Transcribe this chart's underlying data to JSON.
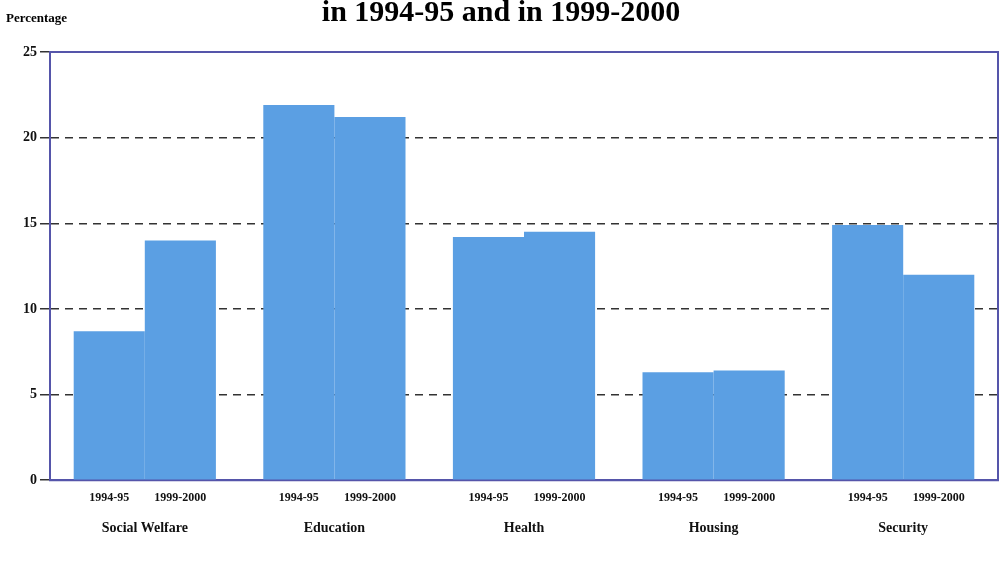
{
  "chart_data": {
    "type": "bar",
    "title": "in 1994-95 and in 1999-2000",
    "ylabel": "Percentage",
    "categories": [
      "Social Welfare",
      "Education",
      "Health",
      "Housing",
      "Security"
    ],
    "series": [
      {
        "name": "1994-95",
        "color": "#5b9fe3",
        "values": [
          8.7,
          21.9,
          14.2,
          6.3,
          14.9
        ]
      },
      {
        "name": "1999-2000",
        "color": "#5b9fe3",
        "values": [
          14.0,
          21.2,
          14.5,
          6.4,
          12.0
        ]
      }
    ],
    "ylim": [
      0,
      25
    ],
    "yticks": [
      0,
      5,
      10,
      15,
      20,
      25
    ],
    "grid": "y",
    "line_style": "dashed",
    "legend": false
  }
}
